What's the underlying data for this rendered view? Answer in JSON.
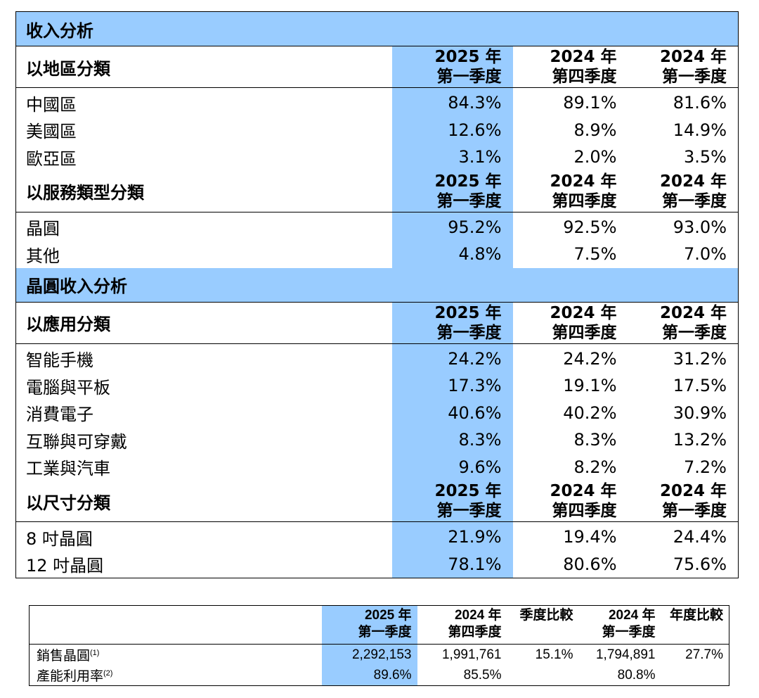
{
  "main_table": {
    "sections": [
      {
        "title": "收入分析",
        "groups": [
          {
            "label": "以地區分類",
            "columns": [
              {
                "year": "2025 年",
                "quarter": "第一季度"
              },
              {
                "year": "2024 年",
                "quarter": "第四季度"
              },
              {
                "year": "2024 年",
                "quarter": "第一季度"
              }
            ],
            "rows": [
              {
                "label": "中國區",
                "values": [
                  "84.3%",
                  "89.1%",
                  "81.6%"
                ]
              },
              {
                "label": "美國區",
                "values": [
                  "12.6%",
                  "8.9%",
                  "14.9%"
                ]
              },
              {
                "label": "歐亞區",
                "values": [
                  "3.1%",
                  "2.0%",
                  "3.5%"
                ]
              }
            ]
          },
          {
            "label": "以服務類型分類",
            "columns": [
              {
                "year": "2025 年",
                "quarter": "第一季度"
              },
              {
                "year": "2024 年",
                "quarter": "第四季度"
              },
              {
                "year": "2024 年",
                "quarter": "第一季度"
              }
            ],
            "rows": [
              {
                "label": "晶圓",
                "values": [
                  "95.2%",
                  "92.5%",
                  "93.0%"
                ]
              },
              {
                "label": "其他",
                "values": [
                  "4.8%",
                  "7.5%",
                  "7.0%"
                ]
              }
            ]
          }
        ]
      },
      {
        "title": "晶圓收入分析",
        "groups": [
          {
            "label": "以應用分類",
            "columns": [
              {
                "year": "2025 年",
                "quarter": "第一季度"
              },
              {
                "year": "2024 年",
                "quarter": "第四季度"
              },
              {
                "year": "2024 年",
                "quarter": "第一季度"
              }
            ],
            "rows": [
              {
                "label": "智能手機",
                "values": [
                  "24.2%",
                  "24.2%",
                  "31.2%"
                ]
              },
              {
                "label": "電腦與平板",
                "values": [
                  "17.3%",
                  "19.1%",
                  "17.5%"
                ]
              },
              {
                "label": "消費電子",
                "values": [
                  "40.6%",
                  "40.2%",
                  "30.9%"
                ]
              },
              {
                "label": "互聯與可穿戴",
                "values": [
                  "8.3%",
                  "8.3%",
                  "13.2%"
                ]
              },
              {
                "label": "工業與汽車",
                "values": [
                  "9.6%",
                  "8.2%",
                  "7.2%"
                ]
              }
            ]
          },
          {
            "label": "以尺寸分類",
            "columns": [
              {
                "year": "2025 年",
                "quarter": "第一季度"
              },
              {
                "year": "2024 年",
                "quarter": "第四季度"
              },
              {
                "year": "2024 年",
                "quarter": "第一季度"
              }
            ],
            "rows": [
              {
                "label": "8 吋晶圓",
                "values": [
                  "21.9%",
                  "19.4%",
                  "24.4%"
                ]
              },
              {
                "label": "12 吋晶圓",
                "values": [
                  "78.1%",
                  "80.6%",
                  "75.6%"
                ]
              }
            ]
          }
        ]
      }
    ]
  },
  "summary_table": {
    "columns": [
      {
        "line1": "2025 年",
        "line2": "第一季度"
      },
      {
        "line1": "2024 年",
        "line2": "第四季度"
      },
      {
        "line1": "季度比較",
        "line2": ""
      },
      {
        "line1": "2024 年",
        "line2": "第一季度"
      },
      {
        "line1": "年度比較",
        "line2": ""
      }
    ],
    "rows": [
      {
        "label": "銷售晶圓",
        "note": "(1)",
        "values": [
          "2,292,153",
          "1,991,761",
          "15.1%",
          "1,794,891",
          "27.7%"
        ]
      },
      {
        "label": "產能利用率",
        "note": "(2)",
        "values": [
          "89.6%",
          "85.5%",
          "",
          "80.8%",
          ""
        ]
      }
    ]
  },
  "colors": {
    "highlight": "#99ccff",
    "border": "#000000"
  }
}
